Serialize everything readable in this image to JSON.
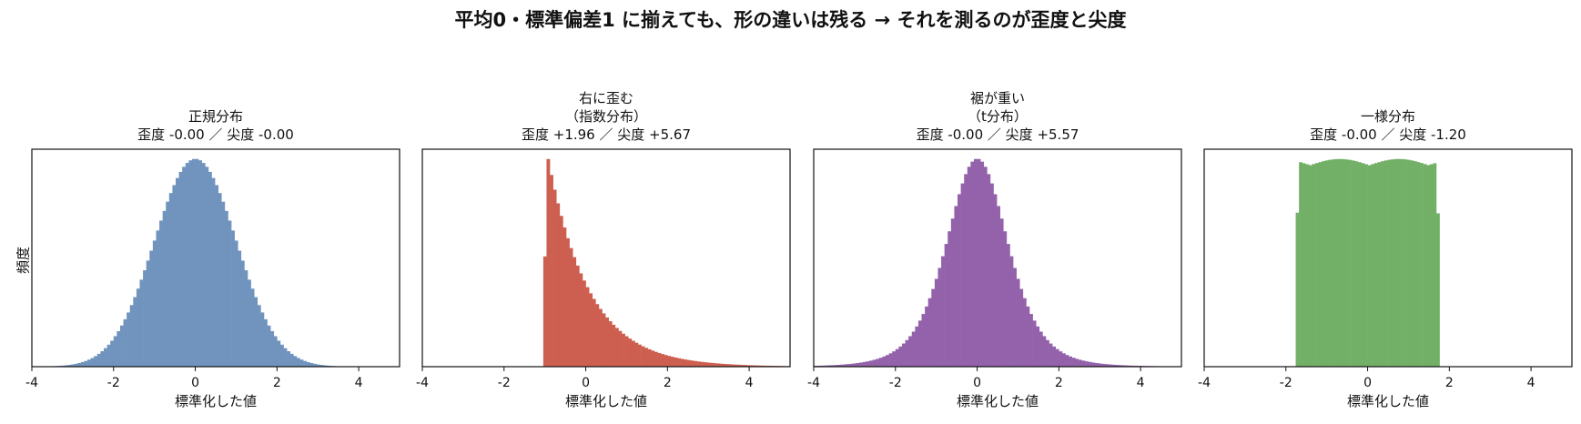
{
  "suptitle": "平均0・標準偏差1 に揃えても、形の違いは残る → それを測るのが歪度と尖度",
  "ylabel": "頻度",
  "chart_data": [
    {
      "type": "histogram",
      "title_lines": [
        "正規分布",
        "歪度 -0.00 ／ 尖度 -0.00"
      ],
      "xlabel": "標準化した値",
      "xlim": [
        -4,
        5
      ],
      "xticks": [
        -4,
        -2,
        0,
        2,
        4
      ],
      "yticks": [],
      "color": "#7094bd",
      "distribution": "normal",
      "skewness": -0.0,
      "kurtosis": -0.0
    },
    {
      "type": "histogram",
      "title_lines": [
        "右に歪む",
        "（指数分布）",
        "歪度 +1.96 ／ 尖度 +5.67"
      ],
      "xlabel": "標準化した値",
      "xlim": [
        -4,
        5
      ],
      "xticks": [
        -4,
        -2,
        0,
        2,
        4
      ],
      "yticks": [],
      "color": "#cd5f50",
      "distribution": "exponential",
      "skewness": 1.96,
      "kurtosis": 5.67
    },
    {
      "type": "histogram",
      "title_lines": [
        "裾が重い",
        "（t分布）",
        "歪度 -0.00 ／ 尖度 +5.57"
      ],
      "xlabel": "標準化した値",
      "xlim": [
        -4,
        5
      ],
      "xticks": [
        -4,
        -2,
        0,
        2,
        4
      ],
      "yticks": [],
      "color": "#9362ab",
      "distribution": "t",
      "skewness": -0.0,
      "kurtosis": 5.57
    },
    {
      "type": "histogram",
      "title_lines": [
        "一様分布",
        "歪度 -0.00 ／ 尖度 -1.20"
      ],
      "xlabel": "標準化した値",
      "xlim": [
        -4,
        5
      ],
      "xticks": [
        -4,
        -2,
        0,
        2,
        4
      ],
      "yticks": [],
      "color": "#73b067",
      "distribution": "uniform",
      "skewness": -0.0,
      "kurtosis": -1.2
    }
  ]
}
